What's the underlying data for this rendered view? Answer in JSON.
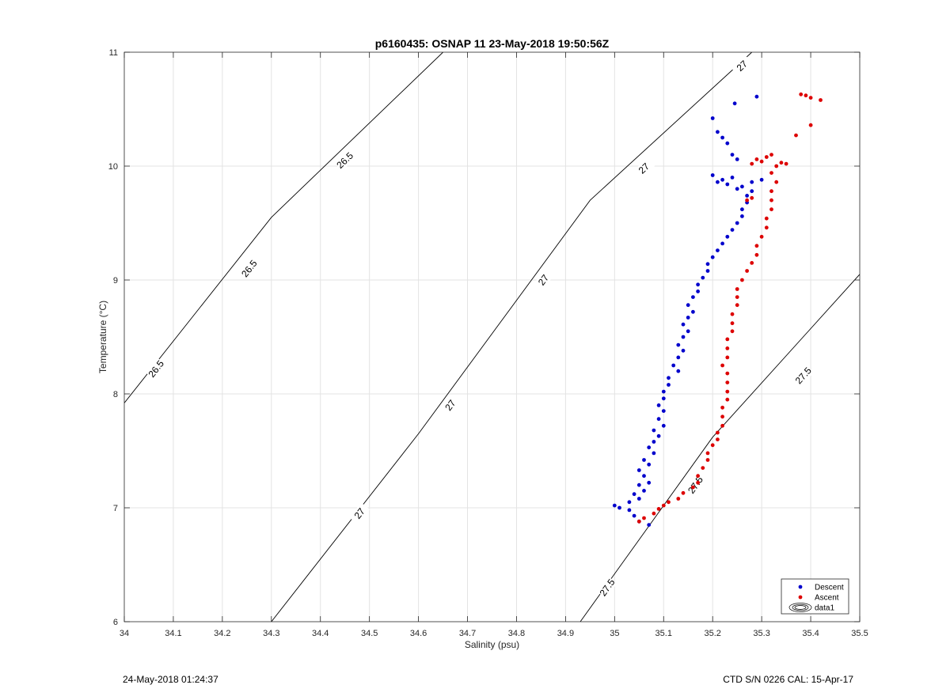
{
  "chart_data": {
    "type": "scatter",
    "title": "p6160435: OSNAP 11 23-May-2018 19:50:56Z",
    "xlabel": "Salinity (psu)",
    "ylabel": "Temperature (°C)",
    "xlim": [
      34,
      35.5
    ],
    "ylim": [
      6,
      11
    ],
    "xticks": [
      "34",
      "34.1",
      "34.2",
      "34.3",
      "34.4",
      "34.5",
      "34.6",
      "34.7",
      "34.8",
      "34.9",
      "35",
      "35.1",
      "35.2",
      "35.3",
      "35.4",
      "35.5"
    ],
    "yticks": [
      "6",
      "7",
      "8",
      "9",
      "10",
      "11"
    ],
    "grid": true,
    "legend_position": "bottom-right",
    "legend": [
      "Descent",
      "Ascent",
      "data1"
    ],
    "contours": [
      {
        "level": "26.5",
        "points": [
          [
            34.0,
            7.92
          ],
          [
            34.3,
            9.55
          ],
          [
            34.65,
            11.0
          ]
        ],
        "labels": [
          [
            34.065,
            8.22
          ],
          [
            34.255,
            9.1
          ],
          [
            34.45,
            10.05
          ]
        ]
      },
      {
        "level": "27",
        "points": [
          [
            34.3,
            6.0
          ],
          [
            34.6,
            7.65
          ],
          [
            34.95,
            9.7
          ],
          [
            35.28,
            11.0
          ]
        ],
        "labels": [
          [
            34.48,
            6.95
          ],
          [
            34.665,
            7.9
          ],
          [
            34.855,
            9.0
          ],
          [
            35.06,
            9.98
          ],
          [
            35.26,
            10.88
          ]
        ]
      },
      {
        "level": "27.5",
        "points": [
          [
            34.93,
            6.0
          ],
          [
            35.2,
            7.62
          ],
          [
            35.5,
            9.05
          ]
        ],
        "labels": [
          [
            34.985,
            6.3
          ],
          [
            35.165,
            7.2
          ],
          [
            35.385,
            8.16
          ]
        ]
      }
    ],
    "series": [
      {
        "name": "Descent",
        "color": "#0000cc",
        "points": [
          [
            35.07,
            6.85
          ],
          [
            35.05,
            6.88
          ],
          [
            35.04,
            6.93
          ],
          [
            35.03,
            6.98
          ],
          [
            35.01,
            7.0
          ],
          [
            35.0,
            7.02
          ],
          [
            35.03,
            7.05
          ],
          [
            35.05,
            7.08
          ],
          [
            35.04,
            7.12
          ],
          [
            35.06,
            7.15
          ],
          [
            35.05,
            7.2
          ],
          [
            35.07,
            7.22
          ],
          [
            35.06,
            7.28
          ],
          [
            35.05,
            7.33
          ],
          [
            35.07,
            7.38
          ],
          [
            35.06,
            7.42
          ],
          [
            35.08,
            7.48
          ],
          [
            35.07,
            7.53
          ],
          [
            35.08,
            7.58
          ],
          [
            35.09,
            7.63
          ],
          [
            35.08,
            7.68
          ],
          [
            35.1,
            7.72
          ],
          [
            35.09,
            7.78
          ],
          [
            35.1,
            7.85
          ],
          [
            35.09,
            7.9
          ],
          [
            35.1,
            7.96
          ],
          [
            35.1,
            8.02
          ],
          [
            35.11,
            8.08
          ],
          [
            35.11,
            8.14
          ],
          [
            35.13,
            8.2
          ],
          [
            35.12,
            8.25
          ],
          [
            35.13,
            8.32
          ],
          [
            35.14,
            8.38
          ],
          [
            35.13,
            8.43
          ],
          [
            35.14,
            8.5
          ],
          [
            35.15,
            8.55
          ],
          [
            35.14,
            8.61
          ],
          [
            35.15,
            8.67
          ],
          [
            35.16,
            8.72
          ],
          [
            35.15,
            8.78
          ],
          [
            35.16,
            8.85
          ],
          [
            35.17,
            8.9
          ],
          [
            35.17,
            8.96
          ],
          [
            35.18,
            9.02
          ],
          [
            35.19,
            9.08
          ],
          [
            35.19,
            9.14
          ],
          [
            35.2,
            9.2
          ],
          [
            35.21,
            9.26
          ],
          [
            35.22,
            9.32
          ],
          [
            35.23,
            9.38
          ],
          [
            35.24,
            9.44
          ],
          [
            35.25,
            9.5
          ],
          [
            35.26,
            9.56
          ],
          [
            35.26,
            9.62
          ],
          [
            35.27,
            9.68
          ],
          [
            35.27,
            9.74
          ],
          [
            35.28,
            9.78
          ],
          [
            35.25,
            9.8
          ],
          [
            35.23,
            9.84
          ],
          [
            35.22,
            9.88
          ],
          [
            35.2,
            9.92
          ],
          [
            35.21,
            9.86
          ],
          [
            35.24,
            9.9
          ],
          [
            35.26,
            9.82
          ],
          [
            35.28,
            9.86
          ],
          [
            35.3,
            9.88
          ],
          [
            35.25,
            10.06
          ],
          [
            35.24,
            10.1
          ],
          [
            35.23,
            10.2
          ],
          [
            35.22,
            10.25
          ],
          [
            35.21,
            10.3
          ],
          [
            35.2,
            10.42
          ],
          [
            35.245,
            10.55
          ],
          [
            35.29,
            10.61
          ]
        ]
      },
      {
        "name": "Ascent",
        "color": "#dd0000",
        "points": [
          [
            35.05,
            6.88
          ],
          [
            35.06,
            6.91
          ],
          [
            35.08,
            6.95
          ],
          [
            35.09,
            6.99
          ],
          [
            35.1,
            7.02
          ],
          [
            35.11,
            7.05
          ],
          [
            35.13,
            7.08
          ],
          [
            35.14,
            7.13
          ],
          [
            35.16,
            7.18
          ],
          [
            35.17,
            7.22
          ],
          [
            35.17,
            7.28
          ],
          [
            35.18,
            7.35
          ],
          [
            35.19,
            7.42
          ],
          [
            35.19,
            7.48
          ],
          [
            35.2,
            7.55
          ],
          [
            35.21,
            7.6
          ],
          [
            35.21,
            7.66
          ],
          [
            35.22,
            7.72
          ],
          [
            35.22,
            7.8
          ],
          [
            35.22,
            7.88
          ],
          [
            35.23,
            7.95
          ],
          [
            35.23,
            8.02
          ],
          [
            35.23,
            8.1
          ],
          [
            35.23,
            8.18
          ],
          [
            35.22,
            8.25
          ],
          [
            35.23,
            8.32
          ],
          [
            35.23,
            8.4
          ],
          [
            35.23,
            8.48
          ],
          [
            35.24,
            8.55
          ],
          [
            35.24,
            8.62
          ],
          [
            35.24,
            8.7
          ],
          [
            35.25,
            8.78
          ],
          [
            35.25,
            8.85
          ],
          [
            35.25,
            8.92
          ],
          [
            35.26,
            9.0
          ],
          [
            35.27,
            9.08
          ],
          [
            35.28,
            9.15
          ],
          [
            35.29,
            9.22
          ],
          [
            35.29,
            9.3
          ],
          [
            35.3,
            9.38
          ],
          [
            35.31,
            9.46
          ],
          [
            35.31,
            9.54
          ],
          [
            35.32,
            9.62
          ],
          [
            35.32,
            9.7
          ],
          [
            35.32,
            9.78
          ],
          [
            35.33,
            9.86
          ],
          [
            35.32,
            9.94
          ],
          [
            35.33,
            10.0
          ],
          [
            35.3,
            10.04
          ],
          [
            35.29,
            10.06
          ],
          [
            35.28,
            10.02
          ],
          [
            35.31,
            10.08
          ],
          [
            35.32,
            10.1
          ],
          [
            35.34,
            10.03
          ],
          [
            35.35,
            10.02
          ],
          [
            35.27,
            9.7
          ],
          [
            35.28,
            9.72
          ],
          [
            35.37,
            10.27
          ],
          [
            35.4,
            10.36
          ],
          [
            35.38,
            10.63
          ],
          [
            35.39,
            10.62
          ],
          [
            35.4,
            10.6
          ],
          [
            35.42,
            10.58
          ]
        ]
      }
    ]
  },
  "footer": {
    "left": "24-May-2018 01:24:37",
    "right": "CTD S/N 0226  CAL: 15-Apr-17"
  }
}
